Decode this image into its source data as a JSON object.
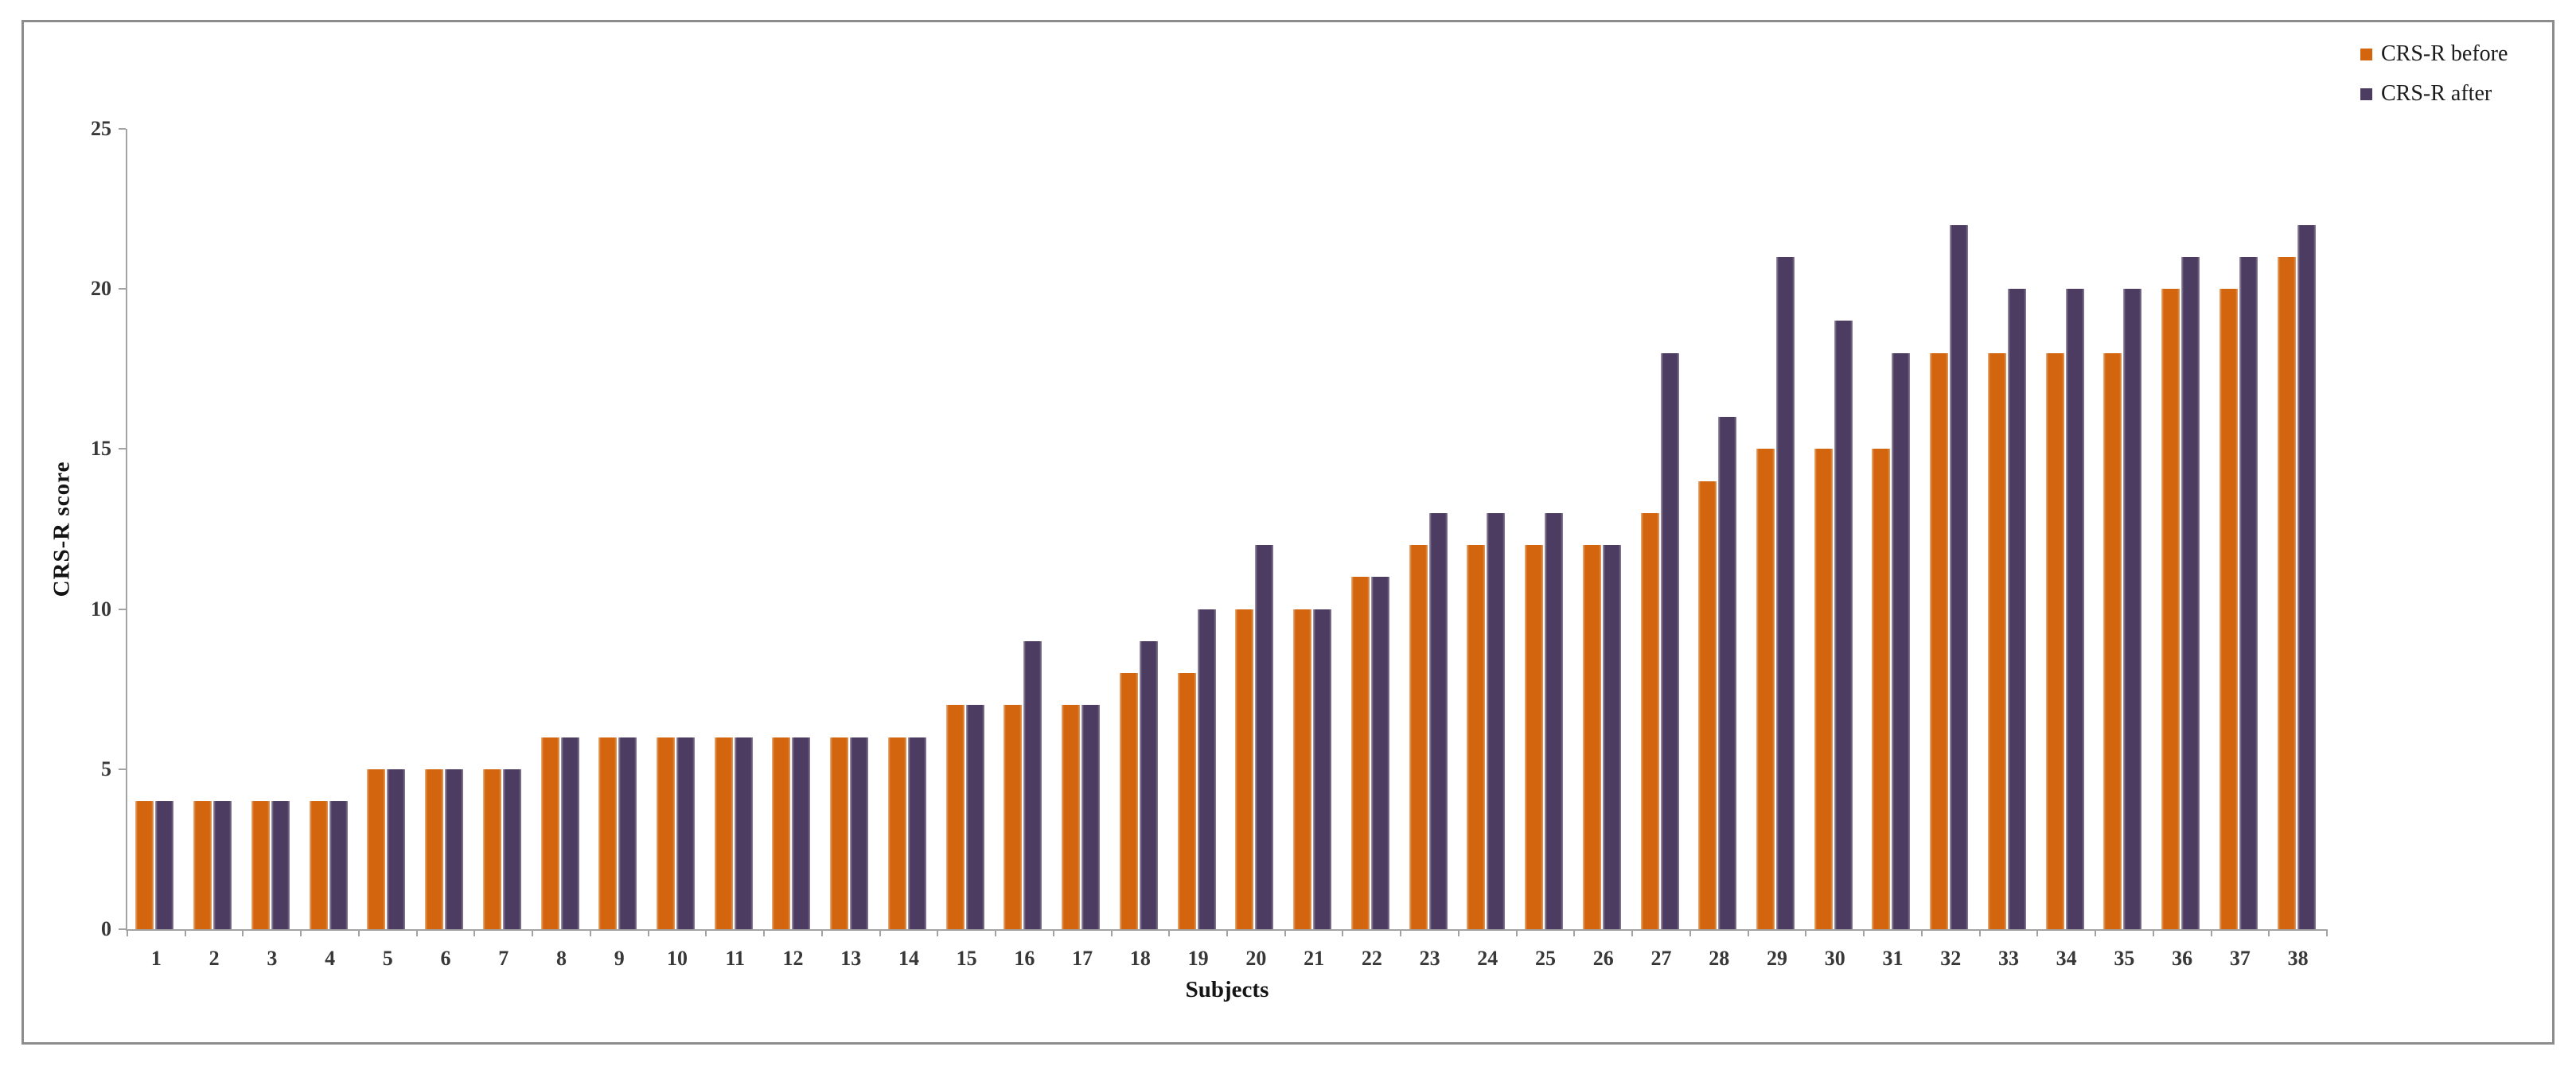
{
  "chart_data": {
    "type": "bar",
    "title": "",
    "xlabel": "Subjects",
    "ylabel": "CRS-R score",
    "ylim": [
      0,
      25
    ],
    "yticks": [
      0,
      5,
      10,
      15,
      20,
      25
    ],
    "grid": "off",
    "legend_position": "top-right",
    "categories": [
      "1",
      "2",
      "3",
      "4",
      "5",
      "6",
      "7",
      "8",
      "9",
      "10",
      "11",
      "12",
      "13",
      "14",
      "15",
      "16",
      "17",
      "18",
      "19",
      "20",
      "21",
      "22",
      "23",
      "24",
      "25",
      "26",
      "27",
      "28",
      "29",
      "30",
      "31",
      "32",
      "33",
      "34",
      "35",
      "36",
      "37",
      "38"
    ],
    "series": [
      {
        "name": "CRS-R before",
        "color": "#d2650d",
        "values": [
          4,
          4,
          4,
          4,
          5,
          5,
          5,
          6,
          6,
          6,
          6,
          6,
          6,
          6,
          7,
          7,
          7,
          8,
          8,
          10,
          10,
          11,
          12,
          12,
          12,
          12,
          13,
          14,
          15,
          15,
          15,
          18,
          18,
          18,
          18,
          20,
          20,
          21
        ]
      },
      {
        "name": "CRS-R after",
        "color": "#4c3c61",
        "values": [
          4,
          4,
          4,
          4,
          5,
          5,
          5,
          6,
          6,
          6,
          6,
          6,
          6,
          6,
          7,
          9,
          7,
          9,
          10,
          12,
          10,
          11,
          13,
          13,
          13,
          12,
          18,
          16,
          21,
          19,
          18,
          22,
          20,
          20,
          20,
          21,
          21,
          22
        ]
      }
    ],
    "axis_color": "#a3a3a3",
    "tick_label_color": "#383838",
    "frame_color": "#8c8c8c"
  }
}
